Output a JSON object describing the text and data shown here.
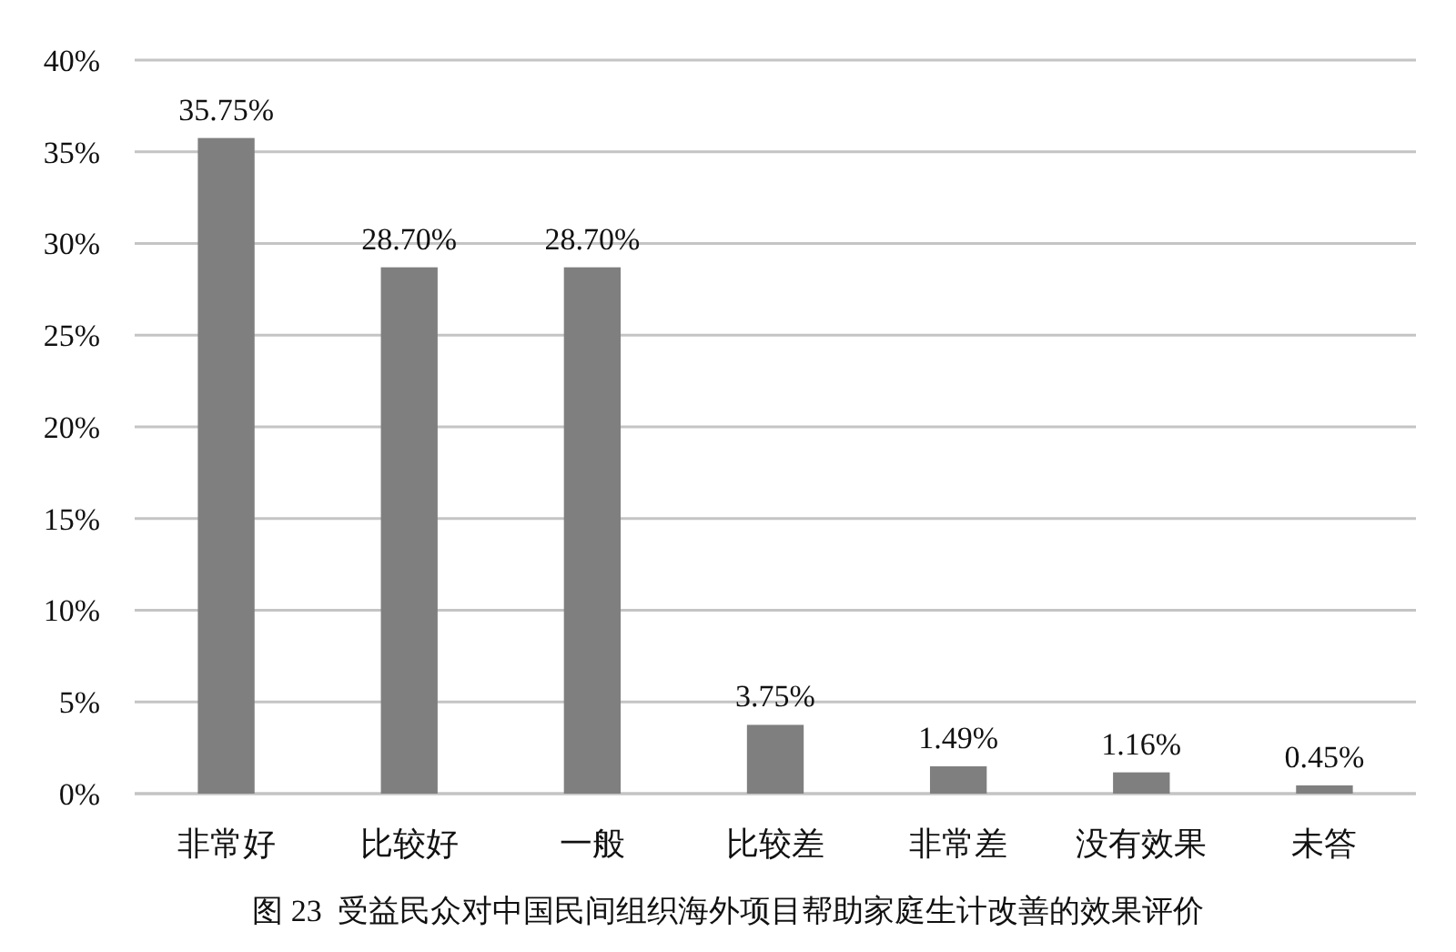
{
  "chart_data": {
    "type": "bar",
    "categories": [
      "非常好",
      "比较好",
      "一般",
      "比较差",
      "非常差",
      "没有效果",
      "未答"
    ],
    "values": [
      35.75,
      28.7,
      28.7,
      3.75,
      1.49,
      1.16,
      0.45
    ],
    "value_labels": [
      "35.75%",
      "28.70%",
      "28.70%",
      "3.75%",
      "1.49%",
      "1.16%",
      "0.45%"
    ],
    "color": "#7f7f7f",
    "ylim": [
      0,
      40
    ],
    "yticks": [
      {
        "value": 0,
        "label": "0%"
      },
      {
        "value": 5,
        "label": "5%"
      },
      {
        "value": 10,
        "label": "10%"
      },
      {
        "value": 15,
        "label": "15%"
      },
      {
        "value": 20,
        "label": "20%"
      },
      {
        "value": 25,
        "label": "25%"
      },
      {
        "value": 30,
        "label": "30%"
      },
      {
        "value": 35,
        "label": "35%"
      },
      {
        "value": 40,
        "label": "40%"
      }
    ],
    "grid": "y",
    "annotations": [
      "图 23  受益民众对中国民间组织海外项目帮助家庭生计改善的效果评价"
    ]
  }
}
